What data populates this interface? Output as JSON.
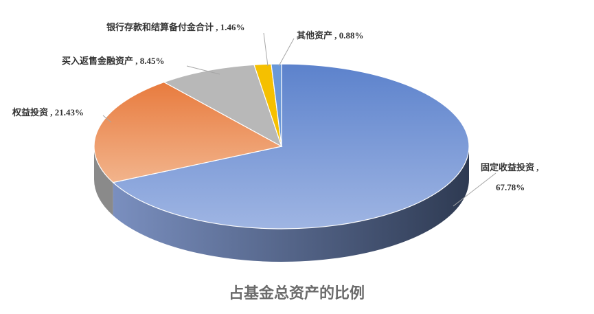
{
  "chart_data": {
    "type": "pie3d",
    "title": "占基金总资产的比例",
    "categories": [
      "固定收益投资",
      "权益投资",
      "买入返售金融资产",
      "银行存款和结算备付金合计",
      "其他资产"
    ],
    "values": [
      67.78,
      21.43,
      8.45,
      1.46,
      0.88
    ],
    "value_labels": [
      "67.78%",
      "21.43%",
      "8.45%",
      "1.46%",
      "0.88%"
    ],
    "separator": " , ",
    "colors": [
      "#7c9ad6",
      "#ec8f56",
      "#b8b8b8",
      "#f5c000",
      "#6a98d8"
    ]
  }
}
